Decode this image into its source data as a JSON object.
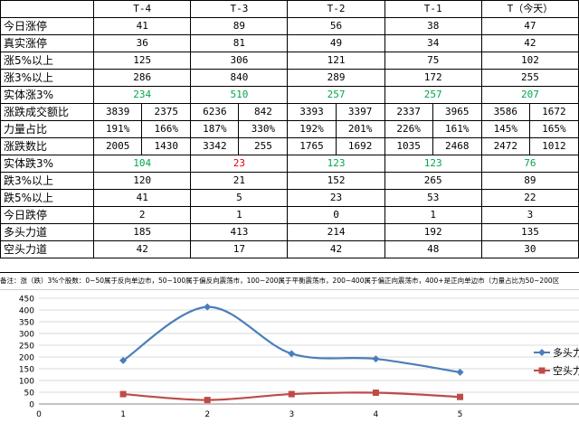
{
  "table": {
    "headers": [
      "",
      "T-4",
      "T-3",
      "T-2",
      "T-1",
      "T（今天）"
    ],
    "rows": [
      {
        "label": "今日涨停",
        "type": "single",
        "values": [
          "41",
          "89",
          "56",
          "38",
          "47"
        ]
      },
      {
        "label": "真实涨停",
        "type": "single",
        "values": [
          "36",
          "81",
          "49",
          "34",
          "42"
        ]
      },
      {
        "label": "涨5%以上",
        "type": "single",
        "values": [
          "125",
          "306",
          "121",
          "75",
          "102"
        ]
      },
      {
        "label": "涨3%以上",
        "type": "single",
        "values": [
          "286",
          "840",
          "289",
          "172",
          "255"
        ]
      },
      {
        "label": "实体涨3%",
        "type": "single",
        "color": "#00a650",
        "values": [
          "234",
          "510",
          "257",
          "257",
          "207"
        ]
      },
      {
        "label": "涨跌成交额比",
        "type": "pair",
        "values": [
          [
            "3839",
            "2375"
          ],
          [
            "6236",
            "842"
          ],
          [
            "3393",
            "3397"
          ],
          [
            "2337",
            "3965"
          ],
          [
            "3586",
            "1672"
          ]
        ]
      },
      {
        "label": "力量占比",
        "type": "pair",
        "values": [
          [
            "191%",
            "166%"
          ],
          [
            "187%",
            "330%"
          ],
          [
            "192%",
            "201%"
          ],
          [
            "226%",
            "161%"
          ],
          [
            "145%",
            "165%"
          ]
        ]
      },
      {
        "label": "涨跌数比",
        "type": "pair",
        "values": [
          [
            "2005",
            "1430"
          ],
          [
            "3342",
            "255"
          ],
          [
            "1765",
            "1692"
          ],
          [
            "1035",
            "2468"
          ],
          [
            "2472",
            "1012"
          ]
        ]
      },
      {
        "label": "实体跌3%",
        "type": "single",
        "cell_colors": [
          "#00a650",
          "#e00000",
          "#00a650",
          "#00a650",
          "#00a650"
        ],
        "values": [
          "104",
          "23",
          "123",
          "123",
          "76"
        ]
      },
      {
        "label": "跌3%以上",
        "type": "single",
        "values": [
          "120",
          "21",
          "152",
          "265",
          "89"
        ]
      },
      {
        "label": "跌5%以上",
        "type": "single",
        "values": [
          "41",
          "5",
          "23",
          "53",
          "22"
        ]
      },
      {
        "label": "今日跌停",
        "type": "single",
        "values": [
          "2",
          "1",
          "0",
          "1",
          "3"
        ]
      },
      {
        "label": "多头力道",
        "type": "single",
        "values": [
          "185",
          "413",
          "214",
          "192",
          "135"
        ]
      },
      {
        "label": "空头力道",
        "type": "single",
        "values": [
          "42",
          "17",
          "42",
          "48",
          "30"
        ]
      }
    ]
  },
  "note": "备注：涨（跌）3%个股数：0~50属于反向单边市，50~100属于偏反向震荡市，100~200属于平衡震荡市，200~400属于偏正向震荡市，400+是正向单边市（力量占比为50~200区",
  "chart_data": {
    "type": "line",
    "x": [
      1,
      2,
      3,
      4,
      5
    ],
    "xlim": [
      0,
      5.8
    ],
    "xticks": [
      0,
      1,
      2,
      3,
      4,
      5
    ],
    "ylim": [
      0,
      450
    ],
    "yticks": [
      0,
      50,
      100,
      150,
      200,
      250,
      300,
      350,
      400,
      450
    ],
    "grid": true,
    "legend_position": "right",
    "series": [
      {
        "name": "多头力",
        "values": [
          185,
          413,
          214,
          192,
          135
        ],
        "color": "#4a7ebb",
        "marker": "diamond"
      },
      {
        "name": "空头力",
        "values": [
          42,
          17,
          42,
          48,
          30
        ],
        "color": "#be4b48",
        "marker": "square"
      }
    ]
  }
}
